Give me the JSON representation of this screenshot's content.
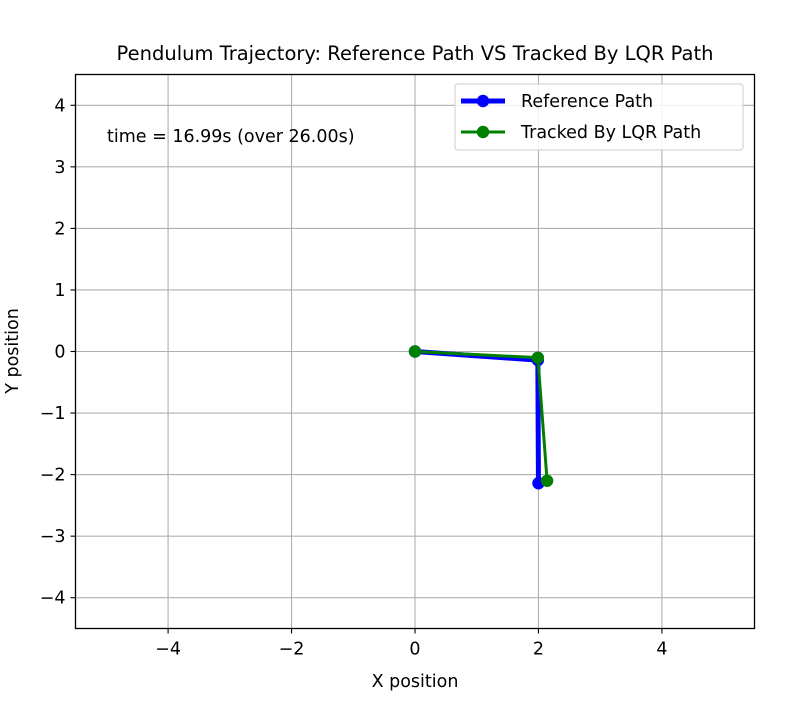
{
  "chart_data": {
    "type": "line",
    "title": "Pendulum Trajectory: Reference Path VS Tracked By LQR Path",
    "xlabel": "X position",
    "ylabel": "Y position",
    "xlim": [
      -5.5,
      5.5
    ],
    "ylim": [
      -4.5,
      4.5
    ],
    "xticks": [
      -4,
      -2,
      0,
      2,
      4
    ],
    "xtick_labels": [
      "−4",
      "−2",
      "0",
      "2",
      "4"
    ],
    "yticks": [
      -4,
      -3,
      -2,
      -1,
      0,
      1,
      2,
      3,
      4
    ],
    "ytick_labels": [
      "−4",
      "−3",
      "−2",
      "−1",
      "0",
      "1",
      "2",
      "3",
      "4"
    ],
    "grid": true,
    "legend_position": "top-right",
    "annotation": "time = 16.99s (over 26.00s)",
    "series": [
      {
        "name": "Reference Path",
        "color": "#0000ff",
        "x": [
          0,
          1.99,
          2.0
        ],
        "y": [
          0,
          -0.14,
          -2.14
        ]
      },
      {
        "name": "Tracked By LQR Path",
        "color": "#008000",
        "x": [
          0,
          1.99,
          2.14
        ],
        "y": [
          0,
          -0.1,
          -2.1
        ]
      }
    ]
  }
}
